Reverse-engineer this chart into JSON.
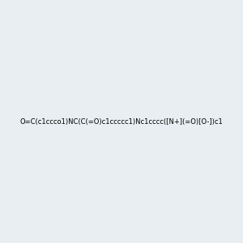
{
  "smiles": "O=C(c1ccco1)NC(C(=O)c1ccccc1)Nc1cccc([N+](=O)[O-])c1",
  "image_size": 300,
  "background_color": "#e8eef2",
  "bond_color": "#1a1a1a",
  "atom_colors": {
    "O": "#cc0000",
    "N": "#0000cc",
    "C": "#1a1a1a"
  }
}
